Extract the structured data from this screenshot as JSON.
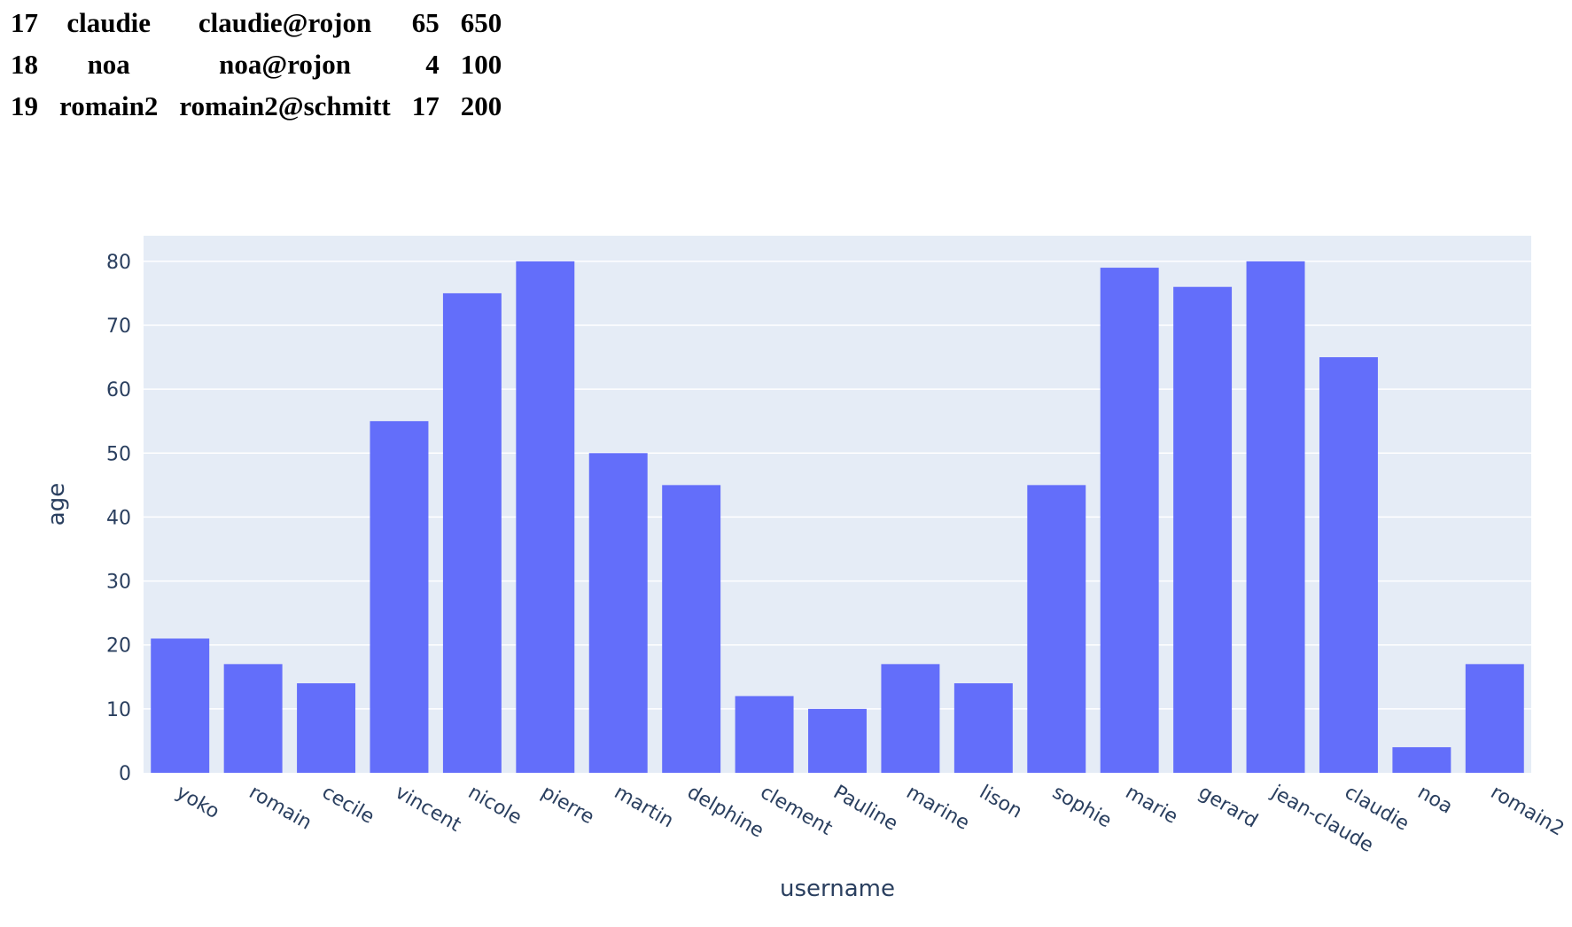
{
  "table": {
    "rows": [
      [
        "17",
        "claudie",
        "claudie@rojon",
        "65",
        "650"
      ],
      [
        "18",
        "noa",
        "noa@rojon",
        "4",
        "100"
      ],
      [
        "19",
        "romain2",
        "romain2@schmitt",
        "17",
        "200"
      ]
    ]
  },
  "colors": {
    "plot_bg": "#e5ecf6",
    "bar": "#636efa",
    "grid": "#ffffff",
    "text": "#2a3f5f"
  },
  "chart_data": {
    "type": "bar",
    "title": "",
    "xlabel": "username",
    "ylabel": "age",
    "ylim": [
      0,
      84
    ],
    "yticks": [
      0,
      10,
      20,
      30,
      40,
      50,
      60,
      70,
      80
    ],
    "grid": true,
    "categories": [
      "yoko",
      "romain",
      "cecile",
      "vincent",
      "nicole",
      "pierre",
      "martin",
      "delphine",
      "clement",
      "Pauline",
      "marine",
      "lison",
      "sophie",
      "marie",
      "gerard",
      "jean-claude",
      "claudie",
      "noa",
      "romain2"
    ],
    "values": [
      21,
      17,
      14,
      55,
      75,
      80,
      50,
      45,
      12,
      10,
      17,
      14,
      45,
      79,
      76,
      80,
      65,
      4,
      17
    ]
  }
}
